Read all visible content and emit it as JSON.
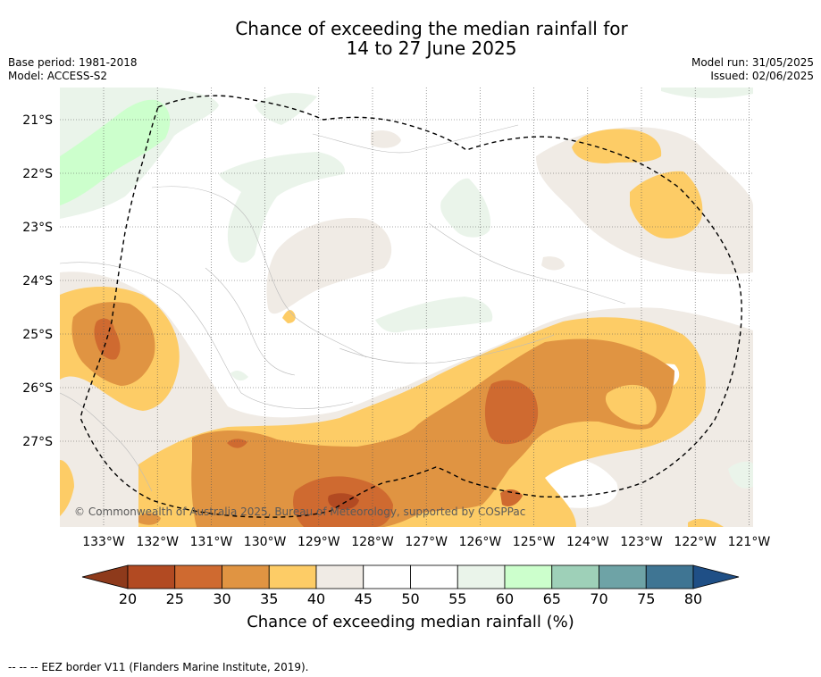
{
  "title_line1": "Chance of exceeding the median rainfall for",
  "title_line2": "14 to 27 June 2025",
  "base_period": "Base period: 1981-2018",
  "model": "Model: ACCESS-S2",
  "model_run": "Model run: 31/05/2025",
  "issued": "Issued: 02/06/2025",
  "copyright": "© Commonwealth of Australia 2025, Bureau of Meteorology, supported by COSPPac",
  "lat_labels": [
    "21°S",
    "22°S",
    "23°S",
    "24°S",
    "25°S",
    "26°S",
    "27°S"
  ],
  "lon_labels": [
    "133°W",
    "132°W",
    "131°W",
    "130°W",
    "129°W",
    "128°W",
    "127°W",
    "126°W",
    "125°W",
    "124°W",
    "123°W",
    "122°W",
    "121°W"
  ],
  "colorbar": {
    "ticks": [
      "20",
      "25",
      "30",
      "35",
      "40",
      "45",
      "50",
      "55",
      "60",
      "65",
      "70",
      "75",
      "80"
    ],
    "title": "Chance of exceeding median rainfall (%)",
    "colors": {
      "under": "#8e3a1b",
      "20-25": "#b24a22",
      "25-30": "#cf6a30",
      "30-35": "#e09442",
      "35-40": "#fdcc66",
      "40-45": "#f0ebe5",
      "45-50": "#ffffff",
      "50-55": "#ffffff",
      "55-60": "#eaf4ea",
      "60-65": "#ccffcc",
      "65-70": "#9ed0b8",
      "70-75": "#6ea3a6",
      "75-80": "#3f7593",
      "over": "#1f4f86"
    }
  },
  "footnote": "-- -- -- EEZ border V11 (Flanders Marine Institute, 2019)."
}
